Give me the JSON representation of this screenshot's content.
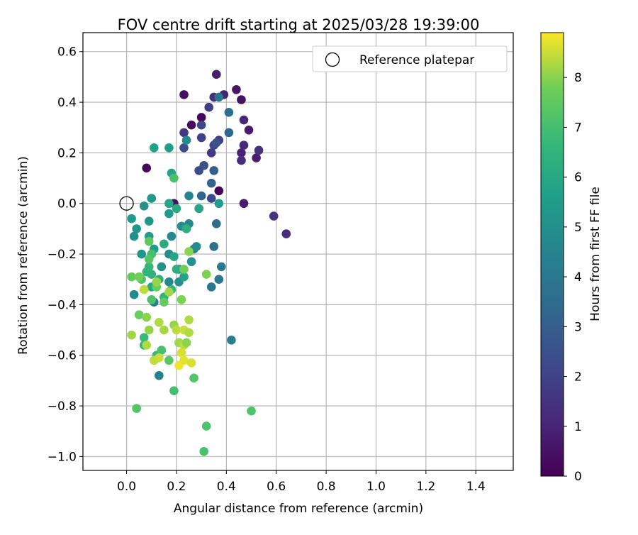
{
  "chart_data": {
    "type": "scatter",
    "title": "FOV centre drift starting at 2025/03/28 19:39:00",
    "xlabel": "Angular distance from reference (arcmin)",
    "ylabel": "Rotation from reference (arcmin)",
    "xlim": [
      -0.175,
      1.55
    ],
    "ylim": [
      -1.055,
      0.675
    ],
    "xticks": [
      0.0,
      0.2,
      0.4,
      0.6,
      0.8,
      1.0,
      1.2,
      1.4
    ],
    "xtick_labels": [
      "0.0",
      "0.2",
      "0.4",
      "0.6",
      "0.8",
      "1.0",
      "1.2",
      "1.4"
    ],
    "yticks": [
      0.6,
      0.4,
      0.2,
      0.0,
      -0.2,
      -0.4,
      -0.6,
      -0.8,
      -1.0
    ],
    "ytick_labels": [
      "0.6",
      "0.4",
      "0.2",
      "0.0",
      "−0.2",
      "−0.4",
      "−0.6",
      "−0.8",
      "−1.0"
    ],
    "grid": true,
    "legend": {
      "placement": "top-right",
      "label": "Reference platepar"
    },
    "reference_point": {
      "x": 0.0,
      "y": 0.0
    },
    "colorbar": {
      "label": "Hours from first FF file",
      "range": [
        0,
        8.9
      ],
      "ticks": [
        0,
        1,
        2,
        3,
        4,
        5,
        6,
        7,
        8
      ],
      "tick_labels": [
        "0",
        "1",
        "2",
        "3",
        "4",
        "5",
        "6",
        "7",
        "8"
      ],
      "colormap": "viridis"
    },
    "points": [
      [
        0.37,
        0.05,
        0.1
      ],
      [
        0.08,
        0.14,
        0.2
      ],
      [
        0.47,
        0.0,
        0.8
      ],
      [
        0.3,
        0.34,
        0.2
      ],
      [
        0.26,
        0.31,
        0.3
      ],
      [
        0.44,
        0.45,
        0.6
      ],
      [
        0.46,
        0.41,
        0.5
      ],
      [
        0.49,
        0.29,
        0.7
      ],
      [
        0.52,
        0.18,
        0.9
      ],
      [
        0.47,
        0.23,
        1.2
      ],
      [
        0.36,
        0.51,
        0.8
      ],
      [
        0.39,
        0.43,
        1.0
      ],
      [
        0.47,
        0.33,
        1.1
      ],
      [
        0.46,
        0.2,
        1.0
      ],
      [
        0.46,
        0.17,
        1.3
      ],
      [
        0.59,
        -0.05,
        1.5
      ],
      [
        0.64,
        -0.12,
        1.3
      ],
      [
        0.23,
        0.43,
        0.4
      ],
      [
        0.53,
        0.21,
        1.4
      ],
      [
        0.23,
        0.28,
        1.6
      ],
      [
        0.33,
        0.38,
        1.8
      ],
      [
        0.35,
        0.42,
        1.4
      ],
      [
        0.37,
        0.25,
        1.9
      ],
      [
        0.3,
        0.31,
        2.1
      ],
      [
        0.3,
        0.26,
        2.0
      ],
      [
        0.35,
        0.23,
        2.2
      ],
      [
        0.34,
        0.2,
        1.7
      ],
      [
        0.23,
        0.22,
        2.3
      ],
      [
        0.36,
        0.24,
        2.5
      ],
      [
        0.31,
        0.15,
        2.6
      ],
      [
        0.29,
        0.13,
        2.4
      ],
      [
        0.35,
        0.13,
        3.0
      ],
      [
        0.34,
        0.08,
        3.2
      ],
      [
        0.34,
        0.02,
        2.3
      ],
      [
        0.3,
        0.03,
        3.3
      ],
      [
        0.19,
        0.0,
        0.5
      ],
      [
        0.36,
        -0.08,
        3.5
      ],
      [
        0.41,
        0.28,
        3.3
      ],
      [
        0.41,
        0.36,
        3.6
      ],
      [
        0.37,
        0.42,
        3.8
      ],
      [
        0.35,
        -0.17,
        3.7
      ],
      [
        0.37,
        -0.3,
        4.0
      ],
      [
        0.38,
        -0.25,
        4.2
      ],
      [
        0.34,
        -0.33,
        3.9
      ],
      [
        0.42,
        -0.54,
        4.3
      ],
      [
        0.25,
        0.03,
        4.5
      ],
      [
        0.25,
        -0.08,
        4.6
      ],
      [
        0.24,
        0.25,
        4.8
      ],
      [
        0.22,
        -0.09,
        4.9
      ],
      [
        0.18,
        -0.13,
        4.7
      ],
      [
        0.27,
        -0.18,
        4.4
      ],
      [
        0.28,
        -0.17,
        4.8
      ],
      [
        0.26,
        -0.23,
        5.0
      ],
      [
        0.17,
        -0.2,
        4.9
      ],
      [
        0.21,
        -0.26,
        5.1
      ],
      [
        0.21,
        -0.31,
        5.0
      ],
      [
        0.17,
        -0.31,
        4.6
      ],
      [
        0.14,
        -0.25,
        5.1
      ],
      [
        0.11,
        -0.39,
        4.5
      ],
      [
        0.13,
        -0.68,
        4.4
      ],
      [
        0.03,
        -0.36,
        4.8
      ],
      [
        0.04,
        -0.1,
        5.3
      ],
      [
        0.03,
        -0.13,
        5.0
      ],
      [
        0.02,
        -0.06,
        5.4
      ],
      [
        0.06,
        -0.2,
        5.2
      ],
      [
        0.07,
        -0.01,
        5.1
      ],
      [
        0.09,
        -0.07,
        5.3
      ],
      [
        0.1,
        0.02,
        5.5
      ],
      [
        0.09,
        -0.13,
        5.4
      ],
      [
        0.11,
        -0.18,
        5.6
      ],
      [
        0.11,
        0.22,
        5.7
      ],
      [
        0.17,
        0.22,
        5.6
      ],
      [
        0.18,
        0.12,
        5.8
      ],
      [
        0.17,
        0.0,
        5.9
      ],
      [
        0.17,
        -0.04,
        5.5
      ],
      [
        0.2,
        -0.02,
        6.0
      ],
      [
        0.29,
        -0.02,
        5.9
      ],
      [
        0.37,
        0.0,
        5.6
      ],
      [
        0.15,
        -0.16,
        6.1
      ],
      [
        0.19,
        -0.21,
        5.9
      ],
      [
        0.2,
        -0.26,
        6.2
      ],
      [
        0.23,
        -0.29,
        5.8
      ],
      [
        0.24,
        -0.1,
        6.3
      ],
      [
        0.1,
        -0.28,
        6.4
      ],
      [
        0.1,
        -0.33,
        6.0
      ],
      [
        0.13,
        -0.3,
        6.3
      ],
      [
        0.08,
        -0.27,
        6.5
      ],
      [
        0.09,
        -0.25,
        6.6
      ],
      [
        0.15,
        -0.37,
        6.5
      ],
      [
        0.18,
        -0.34,
        6.6
      ],
      [
        0.07,
        -0.53,
        6.7
      ],
      [
        0.07,
        -0.56,
        6.5
      ],
      [
        0.12,
        -0.6,
        6.8
      ],
      [
        0.21,
        -0.55,
        6.9
      ],
      [
        0.19,
        0.1,
        7.1
      ],
      [
        0.1,
        -0.2,
        7.0
      ],
      [
        0.06,
        -0.3,
        7.2
      ],
      [
        0.1,
        -0.38,
        7.2
      ],
      [
        0.09,
        -0.22,
        7.3
      ],
      [
        0.14,
        -0.58,
        7.1
      ],
      [
        0.19,
        -0.74,
        7.0
      ],
      [
        0.04,
        -0.81,
        7.3
      ],
      [
        0.32,
        -0.88,
        7.2
      ],
      [
        0.31,
        -0.98,
        7.1
      ],
      [
        0.5,
        -0.82,
        7.2
      ],
      [
        0.27,
        -0.69,
        7.3
      ],
      [
        0.17,
        -0.62,
        7.4
      ],
      [
        0.09,
        -0.15,
        7.5
      ],
      [
        0.02,
        -0.29,
        7.6
      ],
      [
        0.05,
        -0.29,
        7.8
      ],
      [
        0.12,
        -0.33,
        7.7
      ],
      [
        0.15,
        -0.39,
        7.6
      ],
      [
        0.22,
        -0.38,
        7.9
      ],
      [
        0.23,
        -0.26,
        7.8
      ],
      [
        0.25,
        -0.19,
        8.0
      ],
      [
        0.32,
        -0.28,
        7.9
      ],
      [
        0.05,
        -0.44,
        7.7
      ],
      [
        0.08,
        -0.45,
        8.0
      ],
      [
        0.02,
        -0.52,
        8.2
      ],
      [
        0.09,
        -0.5,
        8.1
      ],
      [
        0.13,
        -0.47,
        8.3
      ],
      [
        0.15,
        -0.5,
        8.2
      ],
      [
        0.19,
        -0.48,
        8.1
      ],
      [
        0.2,
        -0.5,
        8.4
      ],
      [
        0.25,
        -0.46,
        8.3
      ],
      [
        0.23,
        -0.5,
        8.5
      ],
      [
        0.25,
        -0.51,
        8.3
      ],
      [
        0.21,
        -0.55,
        8.2
      ],
      [
        0.23,
        -0.56,
        8.4
      ],
      [
        0.22,
        -0.59,
        8.6
      ],
      [
        0.11,
        -0.62,
        8.4
      ],
      [
        0.13,
        -0.61,
        8.5
      ],
      [
        0.08,
        -0.56,
        8.3
      ],
      [
        0.21,
        -0.64,
        8.8
      ],
      [
        0.23,
        -0.62,
        8.7
      ],
      [
        0.26,
        -0.63,
        8.6
      ],
      [
        0.17,
        -0.35,
        8.2
      ],
      [
        0.12,
        -0.31,
        8.1
      ],
      [
        0.07,
        -0.34,
        8.4
      ],
      [
        0.24,
        -0.55,
        8.0
      ]
    ]
  }
}
